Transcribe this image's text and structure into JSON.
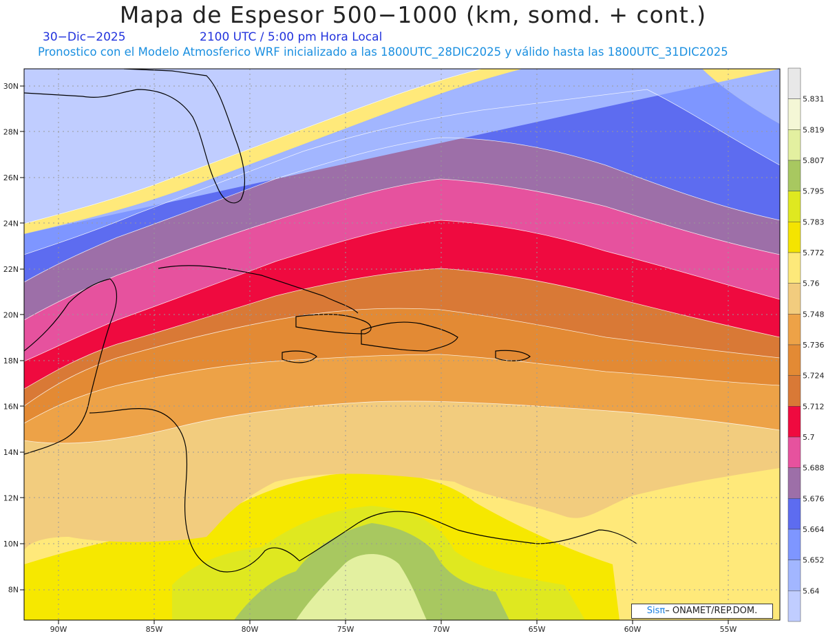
{
  "title": "Mapa de Espesor 500−1000 (km, somd. + cont.)",
  "date": "30−Dic−2025",
  "time": "2100 UTC / 5:00 pm Hora Local",
  "subtitle": "Pronostico con el Modelo Atmosferico WRF inicializado a las 1800UTC_28DIC2025 y válido hasta las  1800UTC_31DIC2025",
  "credit": {
    "logo": "Sisπ",
    "text": "– ONAMET/REP.DOM."
  },
  "lat_labels": [
    "30N",
    "28N",
    "26N",
    "24N",
    "22N",
    "20N",
    "18N",
    "16N",
    "14N",
    "12N",
    "10N",
    "8N"
  ],
  "lon_labels": [
    "90W",
    "85W",
    "80W",
    "75W",
    "70W",
    "65W",
    "60W",
    "55W"
  ],
  "legend": {
    "labels": [
      "5.831",
      "5.819",
      "5.807",
      "5.795",
      "5.783",
      "5.772",
      "5.76",
      "5.748",
      "5.736",
      "5.724",
      "5.712",
      "5.7",
      "5.688",
      "5.676",
      "5.664",
      "5.652",
      "5.64"
    ],
    "colors": [
      "#e8e8e8",
      "#f4f7d6",
      "#e3f0a0",
      "#a8c860",
      "#dfe820",
      "#f4e400",
      "#fde97a",
      "#f2cc7e",
      "#eda247",
      "#e38a34",
      "#d97936",
      "#ef0a3f",
      "#e6529e",
      "#9d6fa8",
      "#5d6cf0",
      "#7e96ff",
      "#a2b6ff",
      "#c0cdff"
    ]
  }
}
